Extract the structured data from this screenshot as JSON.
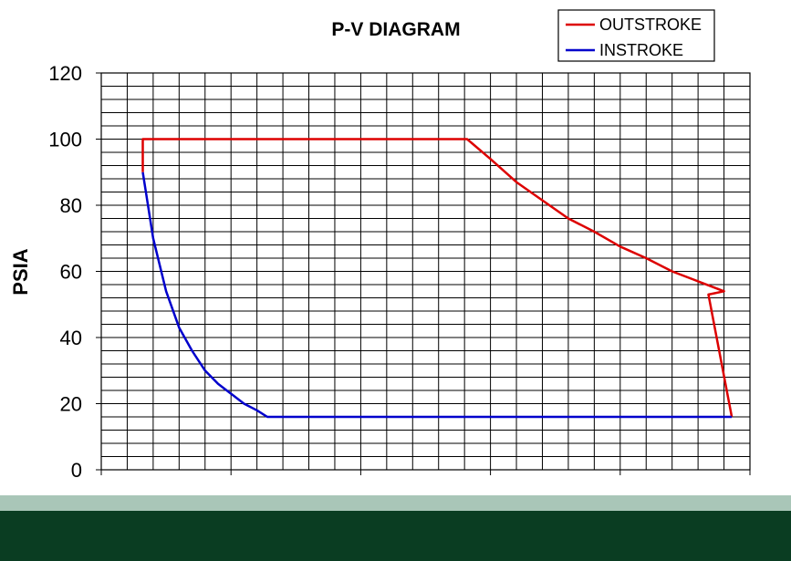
{
  "chart_data": {
    "type": "line",
    "title": "P-V DIAGRAM",
    "xlabel": "",
    "ylabel": "PSIA",
    "xlim": [
      0,
      2.5
    ],
    "ylim": [
      0,
      120
    ],
    "x_ticks": [
      "0",
      "0.5",
      "1",
      "1.5",
      "2",
      "2.5"
    ],
    "y_ticks": [
      "0",
      "20",
      "40",
      "60",
      "80",
      "100",
      "120"
    ],
    "grid": true,
    "legend_position": "top-right",
    "series": [
      {
        "name": "OUTSTROKE",
        "color": "#dd0000",
        "points": [
          [
            0.16,
            90
          ],
          [
            0.16,
            100
          ],
          [
            1.41,
            100
          ],
          [
            1.5,
            94
          ],
          [
            1.6,
            87
          ],
          [
            1.7,
            81.5
          ],
          [
            1.8,
            76
          ],
          [
            1.9,
            72
          ],
          [
            2.0,
            67.5
          ],
          [
            2.1,
            64
          ],
          [
            2.2,
            60
          ],
          [
            2.3,
            57
          ],
          [
            2.4,
            54
          ],
          [
            2.34,
            53
          ],
          [
            2.43,
            16
          ]
        ]
      },
      {
        "name": "INSTROKE",
        "color": "#0000cc",
        "points": [
          [
            0.16,
            90
          ],
          [
            0.2,
            70
          ],
          [
            0.25,
            54
          ],
          [
            0.3,
            43
          ],
          [
            0.35,
            36
          ],
          [
            0.4,
            30
          ],
          [
            0.45,
            26
          ],
          [
            0.5,
            23
          ],
          [
            0.55,
            20
          ],
          [
            0.6,
            18
          ],
          [
            0.64,
            16
          ],
          [
            2.43,
            16
          ]
        ]
      }
    ]
  },
  "footer_bar": {
    "color_top": "#a9c6b8",
    "color_bottom": "#0a3d22"
  }
}
